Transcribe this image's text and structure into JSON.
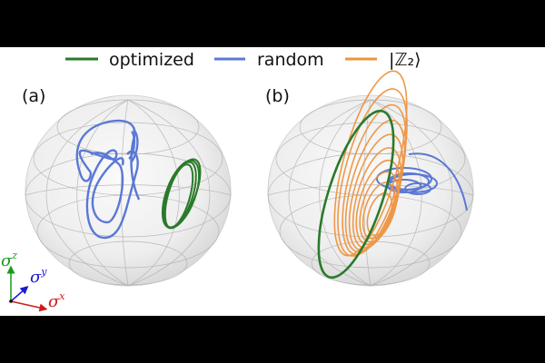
{
  "legend": {
    "items": [
      {
        "label": "optimized",
        "color": "#2a7a2a"
      },
      {
        "label": "random",
        "color": "#5a78d6"
      },
      {
        "label": "|ℤ₂⟩",
        "color": "#ee9440"
      }
    ]
  },
  "panels": [
    {
      "label": "(a)",
      "trajectories": [
        "random",
        "optimized"
      ]
    },
    {
      "label": "(b)",
      "trajectories": [
        "|ℤ₂⟩",
        "optimized",
        "random"
      ]
    }
  ],
  "axes": {
    "z": {
      "symbol": "σ",
      "sup": "z",
      "color": "#1a9a1a"
    },
    "y": {
      "symbol": "σ",
      "sup": "y",
      "color": "#1a1ad0"
    },
    "x": {
      "symbol": "σ",
      "sup": "x",
      "color": "#d01a1a"
    }
  }
}
